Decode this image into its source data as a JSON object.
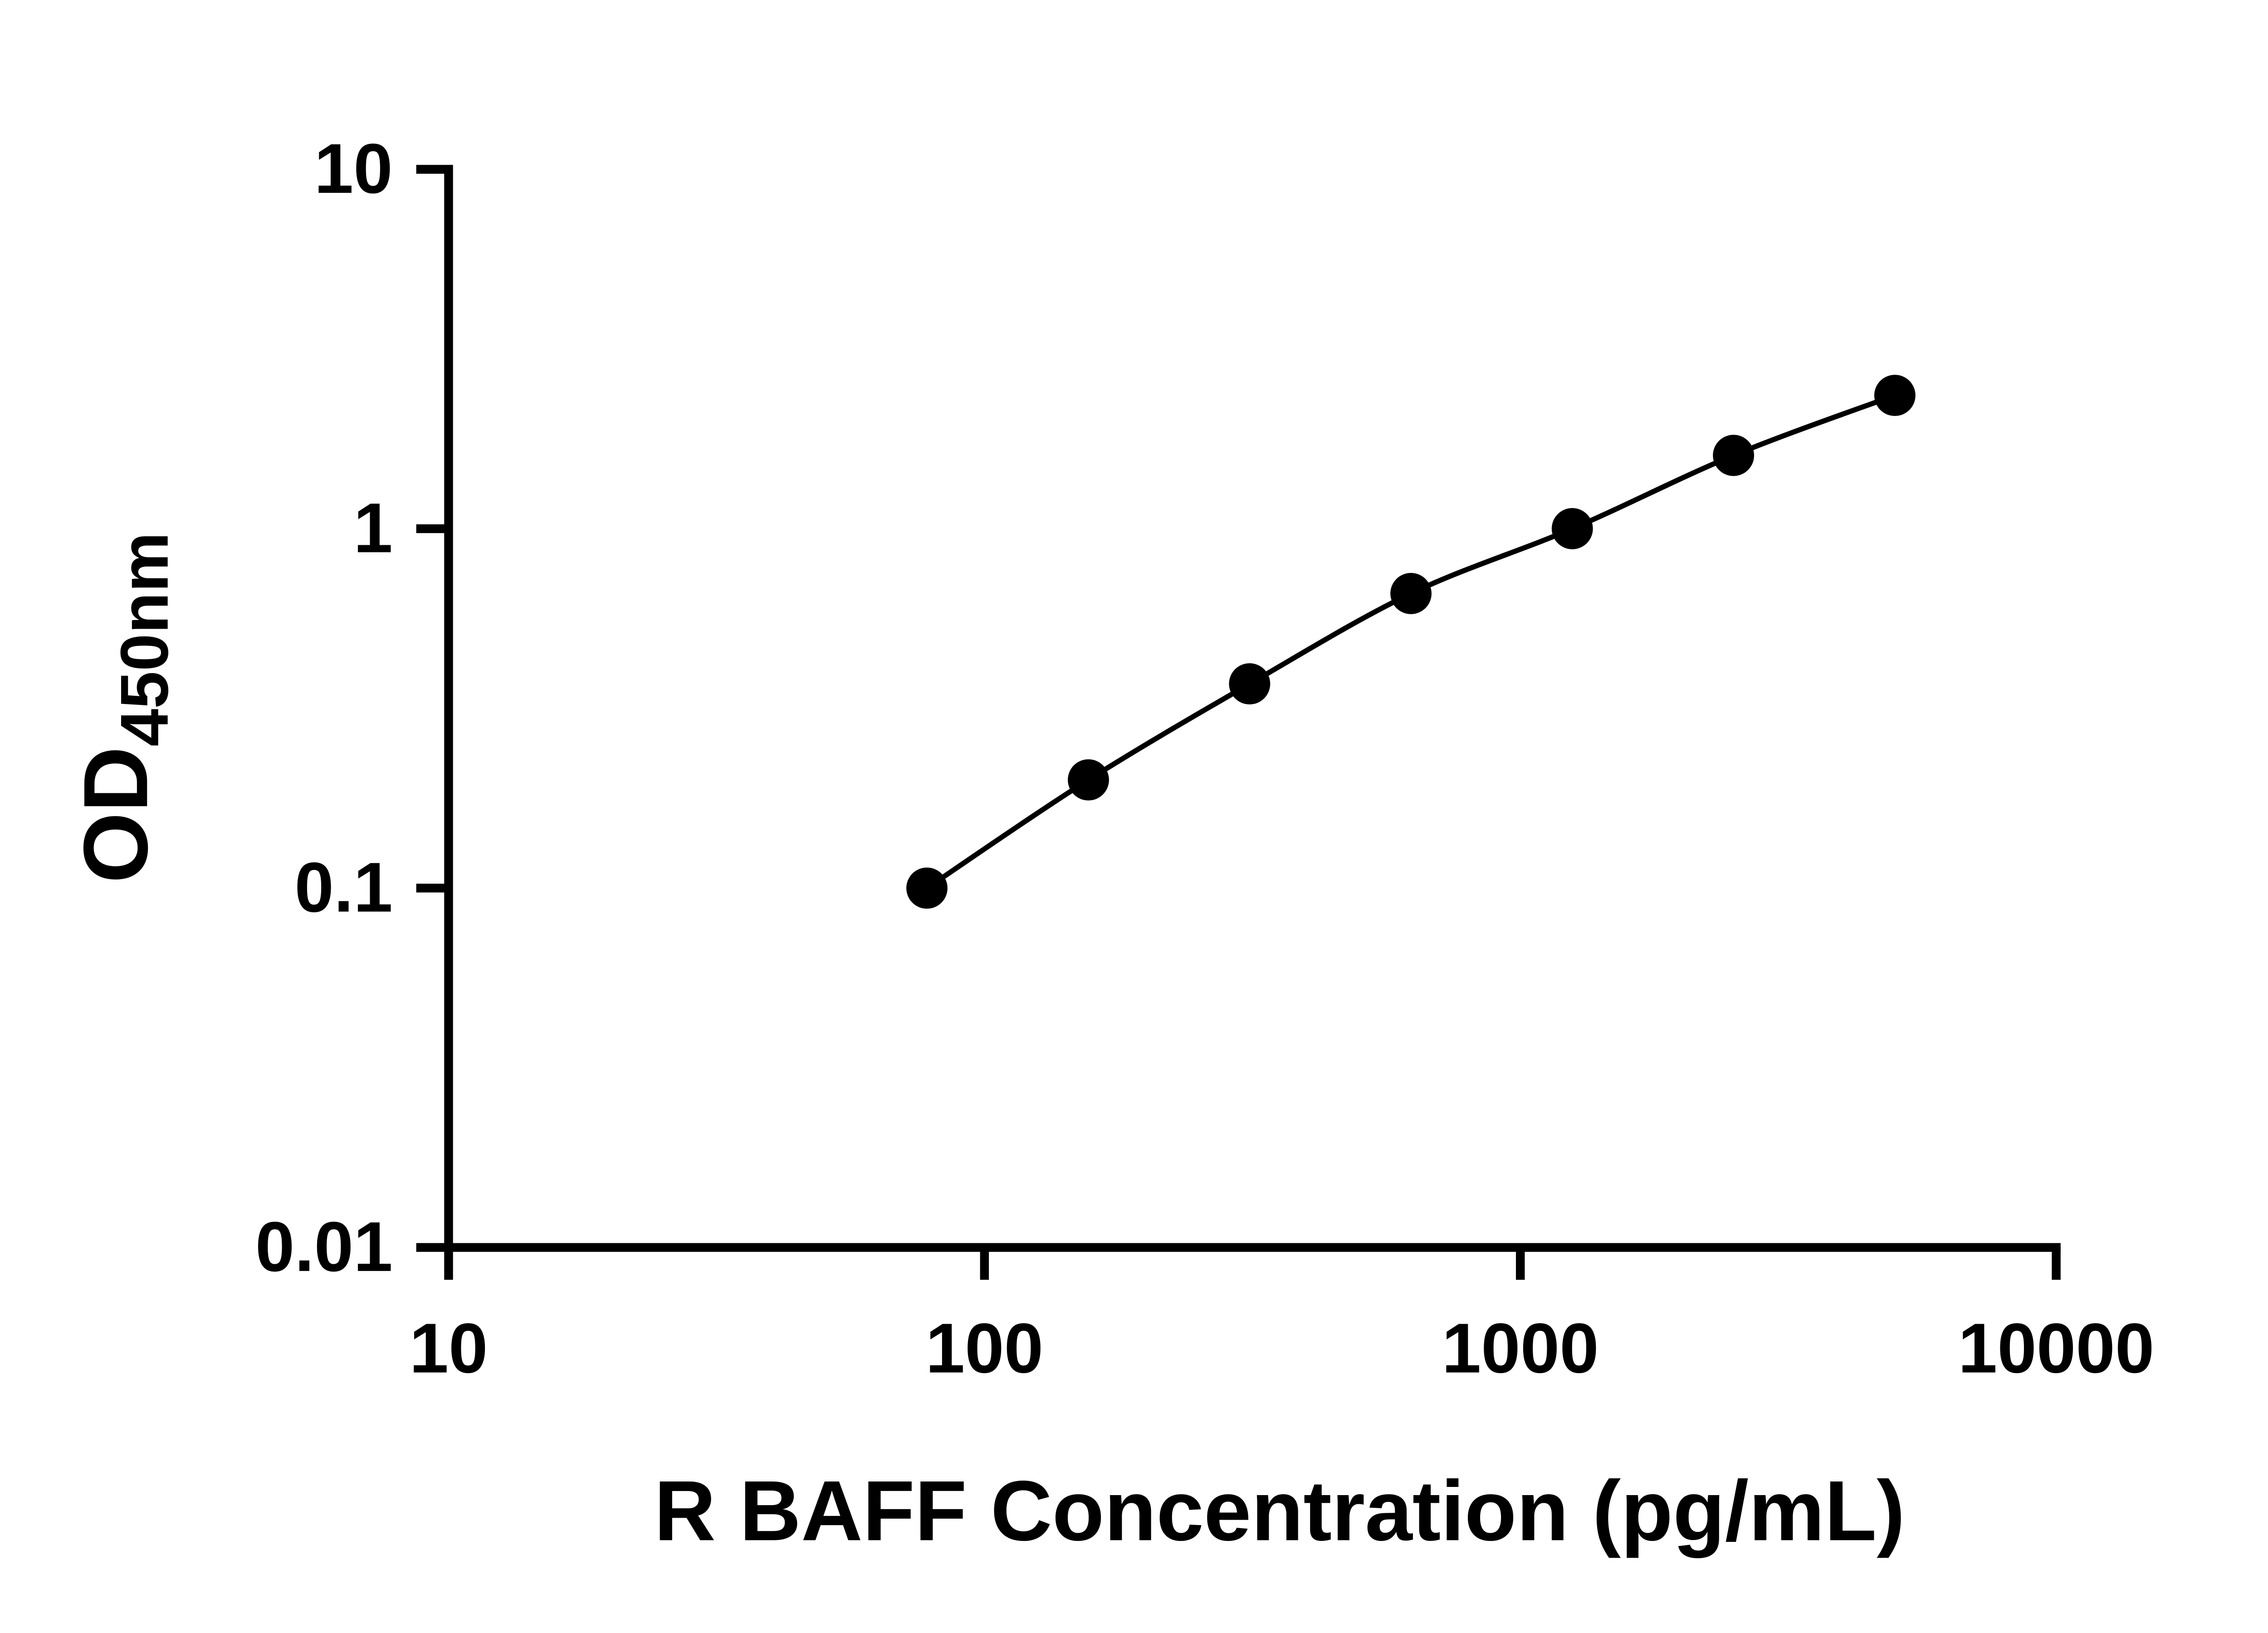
{
  "chart_data": {
    "type": "scatter",
    "subtype": "log-log standard curve with smooth connecting line",
    "title": "",
    "xlabel": "R BAFF Concentration (pg/mL)",
    "ylabel_main": "OD",
    "ylabel_sub": "450nm",
    "x_scale": "log",
    "y_scale": "log",
    "xlim": [
      10,
      10000
    ],
    "ylim": [
      0.01,
      10
    ],
    "x_ticks": [
      10,
      100,
      1000,
      10000
    ],
    "x_tick_labels": [
      "10",
      "100",
      "1000",
      "10000"
    ],
    "y_ticks": [
      0.01,
      0.1,
      1,
      10
    ],
    "y_tick_labels": [
      "0.01",
      "0.1",
      "1",
      "10"
    ],
    "points": [
      {
        "x": 78.1,
        "y": 0.1
      },
      {
        "x": 156.3,
        "y": 0.2
      },
      {
        "x": 312.5,
        "y": 0.37
      },
      {
        "x": 625,
        "y": 0.66
      },
      {
        "x": 1250,
        "y": 1.0
      },
      {
        "x": 2500,
        "y": 1.6
      },
      {
        "x": 5000,
        "y": 2.35
      }
    ],
    "grid": false,
    "legend": null,
    "point_color": "#000000",
    "line_color": "#000000",
    "axis_color": "#000000",
    "text_color": "#000000",
    "background": "#ffffff"
  }
}
